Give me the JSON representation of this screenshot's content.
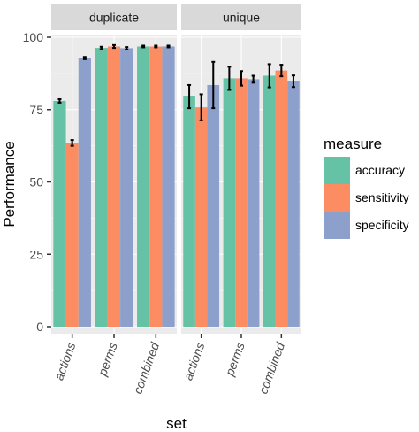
{
  "chart_data": {
    "type": "bar",
    "facets": [
      "duplicate",
      "unique"
    ],
    "categories": [
      "actions",
      "perms",
      "combined"
    ],
    "xlabel": "set",
    "ylabel": "Performance",
    "ylim": [
      0,
      100
    ],
    "yticks": [
      0,
      25,
      50,
      75,
      100
    ],
    "legend": {
      "title": "measure",
      "position": "right"
    },
    "colors": {
      "accuracy": "#66c2a5",
      "sensitivity": "#fc8d62",
      "specificity": "#8da0cb",
      "panel_bg": "#ebebeb",
      "strip_bg": "#d9d9d9",
      "grid": "#ffffff"
    },
    "series": [
      {
        "name": "accuracy",
        "values": {
          "duplicate": [
            78.0,
            96.3,
            96.8
          ],
          "unique": [
            79.5,
            85.8,
            86.7
          ]
        },
        "errors": {
          "duplicate": [
            0.6,
            0.4,
            0.3
          ],
          "unique": [
            4.0,
            4.0,
            4.0
          ]
        }
      },
      {
        "name": "sensitivity",
        "values": {
          "duplicate": [
            63.5,
            96.8,
            96.8
          ],
          "unique": [
            75.8,
            85.8,
            88.5
          ]
        },
        "errors": {
          "duplicate": [
            1.0,
            0.5,
            0.3
          ],
          "unique": [
            4.5,
            2.5,
            2.0
          ]
        }
      },
      {
        "name": "specificity",
        "values": {
          "duplicate": [
            92.8,
            96.2,
            96.8
          ],
          "unique": [
            83.5,
            85.5,
            84.8
          ]
        },
        "errors": {
          "duplicate": [
            0.4,
            0.4,
            0.3
          ],
          "unique": [
            8.0,
            1.2,
            2.0
          ]
        }
      }
    ]
  }
}
